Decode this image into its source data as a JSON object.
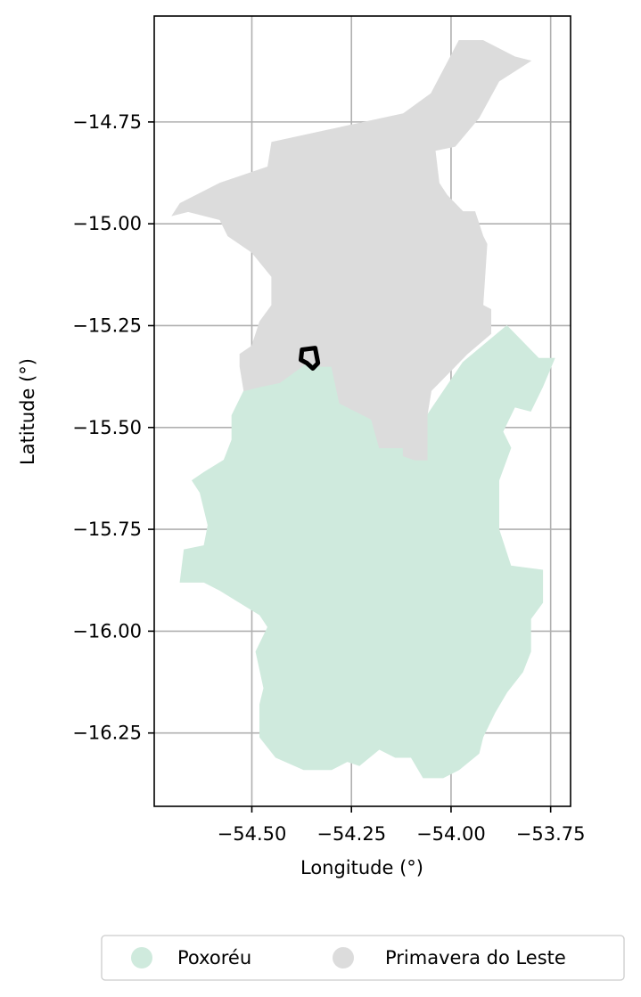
{
  "chart_data": {
    "type": "map",
    "xlabel": "Longitude (°)",
    "ylabel": "Latitude (°)",
    "xlim": [
      -54.745,
      -53.7
    ],
    "ylim": [
      -16.43,
      -14.49
    ],
    "xticks": [
      -54.5,
      -54.25,
      -54.0,
      -53.75
    ],
    "xtick_labels": [
      "−54.50",
      "−54.25",
      "−54.00",
      "−53.75"
    ],
    "yticks": [
      -14.75,
      -15.0,
      -15.25,
      -15.5,
      -15.75,
      -16.0,
      -16.25
    ],
    "ytick_labels": [
      "−14.75",
      "−15.00",
      "−15.25",
      "−15.50",
      "−15.75",
      "−16.00",
      "−16.25"
    ],
    "grid": true,
    "legend_position": "bottom",
    "series": [
      {
        "name": "Poxoréu",
        "color": "#cfeadd",
        "polygon": [
          [
            -54.52,
            -15.41
          ],
          [
            -54.48,
            -15.4
          ],
          [
            -54.43,
            -15.39
          ],
          [
            -54.36,
            -15.34
          ],
          [
            -54.33,
            -15.35
          ],
          [
            -54.3,
            -15.35
          ],
          [
            -54.28,
            -15.44
          ],
          [
            -54.2,
            -15.48
          ],
          [
            -54.18,
            -15.55
          ],
          [
            -54.12,
            -15.55
          ],
          [
            -54.12,
            -15.57
          ],
          [
            -54.09,
            -15.58
          ],
          [
            -54.06,
            -15.58
          ],
          [
            -54.06,
            -15.47
          ],
          [
            -53.97,
            -15.34
          ],
          [
            -53.86,
            -15.25
          ],
          [
            -53.78,
            -15.33
          ],
          [
            -53.74,
            -15.33
          ],
          [
            -53.77,
            -15.4
          ],
          [
            -53.8,
            -15.46
          ],
          [
            -53.84,
            -15.45
          ],
          [
            -53.87,
            -15.51
          ],
          [
            -53.85,
            -15.55
          ],
          [
            -53.88,
            -15.63
          ],
          [
            -53.88,
            -15.75
          ],
          [
            -53.85,
            -15.84
          ],
          [
            -53.77,
            -15.85
          ],
          [
            -53.77,
            -15.93
          ],
          [
            -53.8,
            -15.97
          ],
          [
            -53.8,
            -16.05
          ],
          [
            -53.82,
            -16.1
          ],
          [
            -53.86,
            -16.15
          ],
          [
            -53.89,
            -16.2
          ],
          [
            -53.92,
            -16.26
          ],
          [
            -53.93,
            -16.3
          ],
          [
            -53.98,
            -16.34
          ],
          [
            -54.02,
            -16.36
          ],
          [
            -54.07,
            -16.36
          ],
          [
            -54.1,
            -16.31
          ],
          [
            -54.14,
            -16.31
          ],
          [
            -54.18,
            -16.29
          ],
          [
            -54.23,
            -16.33
          ],
          [
            -54.26,
            -16.32
          ],
          [
            -54.3,
            -16.34
          ],
          [
            -54.37,
            -16.34
          ],
          [
            -54.44,
            -16.31
          ],
          [
            -54.48,
            -16.26
          ],
          [
            -54.48,
            -16.18
          ],
          [
            -54.47,
            -16.14
          ],
          [
            -54.49,
            -16.05
          ],
          [
            -54.46,
            -15.99
          ],
          [
            -54.48,
            -15.96
          ],
          [
            -54.58,
            -15.9
          ],
          [
            -54.62,
            -15.88
          ],
          [
            -54.68,
            -15.88
          ],
          [
            -54.67,
            -15.8
          ],
          [
            -54.62,
            -15.79
          ],
          [
            -54.61,
            -15.74
          ],
          [
            -54.63,
            -15.66
          ],
          [
            -54.65,
            -15.63
          ],
          [
            -54.62,
            -15.61
          ],
          [
            -54.57,
            -15.58
          ],
          [
            -54.55,
            -15.53
          ],
          [
            -54.55,
            -15.47
          ]
        ]
      },
      {
        "name": "Primavera do Leste",
        "color": "#dcdcdc",
        "polygon": [
          [
            -54.45,
            -14.8
          ],
          [
            -54.31,
            -14.77
          ],
          [
            -54.12,
            -14.73
          ],
          [
            -54.05,
            -14.68
          ],
          [
            -53.98,
            -14.55
          ],
          [
            -53.92,
            -14.55
          ],
          [
            -53.84,
            -14.59
          ],
          [
            -53.8,
            -14.6
          ],
          [
            -53.88,
            -14.65
          ],
          [
            -53.93,
            -14.74
          ],
          [
            -53.99,
            -14.81
          ],
          [
            -54.04,
            -14.82
          ],
          [
            -54.03,
            -14.9
          ],
          [
            -54.01,
            -14.93
          ],
          [
            -53.97,
            -14.97
          ],
          [
            -53.94,
            -14.97
          ],
          [
            -53.92,
            -15.03
          ],
          [
            -53.91,
            -15.05
          ],
          [
            -53.92,
            -15.2
          ],
          [
            -53.9,
            -15.21
          ],
          [
            -53.9,
            -15.27
          ],
          [
            -53.96,
            -15.32
          ],
          [
            -54.05,
            -15.41
          ],
          [
            -54.06,
            -15.47
          ],
          [
            -54.06,
            -15.58
          ],
          [
            -54.09,
            -15.58
          ],
          [
            -54.12,
            -15.57
          ],
          [
            -54.12,
            -15.55
          ],
          [
            -54.18,
            -15.55
          ],
          [
            -54.2,
            -15.48
          ],
          [
            -54.28,
            -15.44
          ],
          [
            -54.3,
            -15.35
          ],
          [
            -54.33,
            -15.35
          ],
          [
            -54.36,
            -15.34
          ],
          [
            -54.43,
            -15.39
          ],
          [
            -54.48,
            -15.4
          ],
          [
            -54.52,
            -15.41
          ],
          [
            -54.53,
            -15.35
          ],
          [
            -54.53,
            -15.32
          ],
          [
            -54.5,
            -15.3
          ],
          [
            -54.48,
            -15.24
          ],
          [
            -54.45,
            -15.2
          ],
          [
            -54.45,
            -15.13
          ],
          [
            -54.5,
            -15.07
          ],
          [
            -54.56,
            -15.03
          ],
          [
            -54.58,
            -14.99
          ],
          [
            -54.66,
            -14.97
          ],
          [
            -54.7,
            -14.98
          ],
          [
            -54.68,
            -14.95
          ],
          [
            -54.58,
            -14.9
          ],
          [
            -54.46,
            -14.86
          ]
        ]
      }
    ],
    "annotations": [
      {
        "type": "outline",
        "color": "#000000",
        "polygon": [
          [
            -54.374,
            -15.309
          ],
          [
            -54.341,
            -15.305
          ],
          [
            -54.334,
            -15.342
          ],
          [
            -54.347,
            -15.355
          ],
          [
            -54.362,
            -15.342
          ],
          [
            -54.377,
            -15.334
          ]
        ]
      }
    ]
  }
}
